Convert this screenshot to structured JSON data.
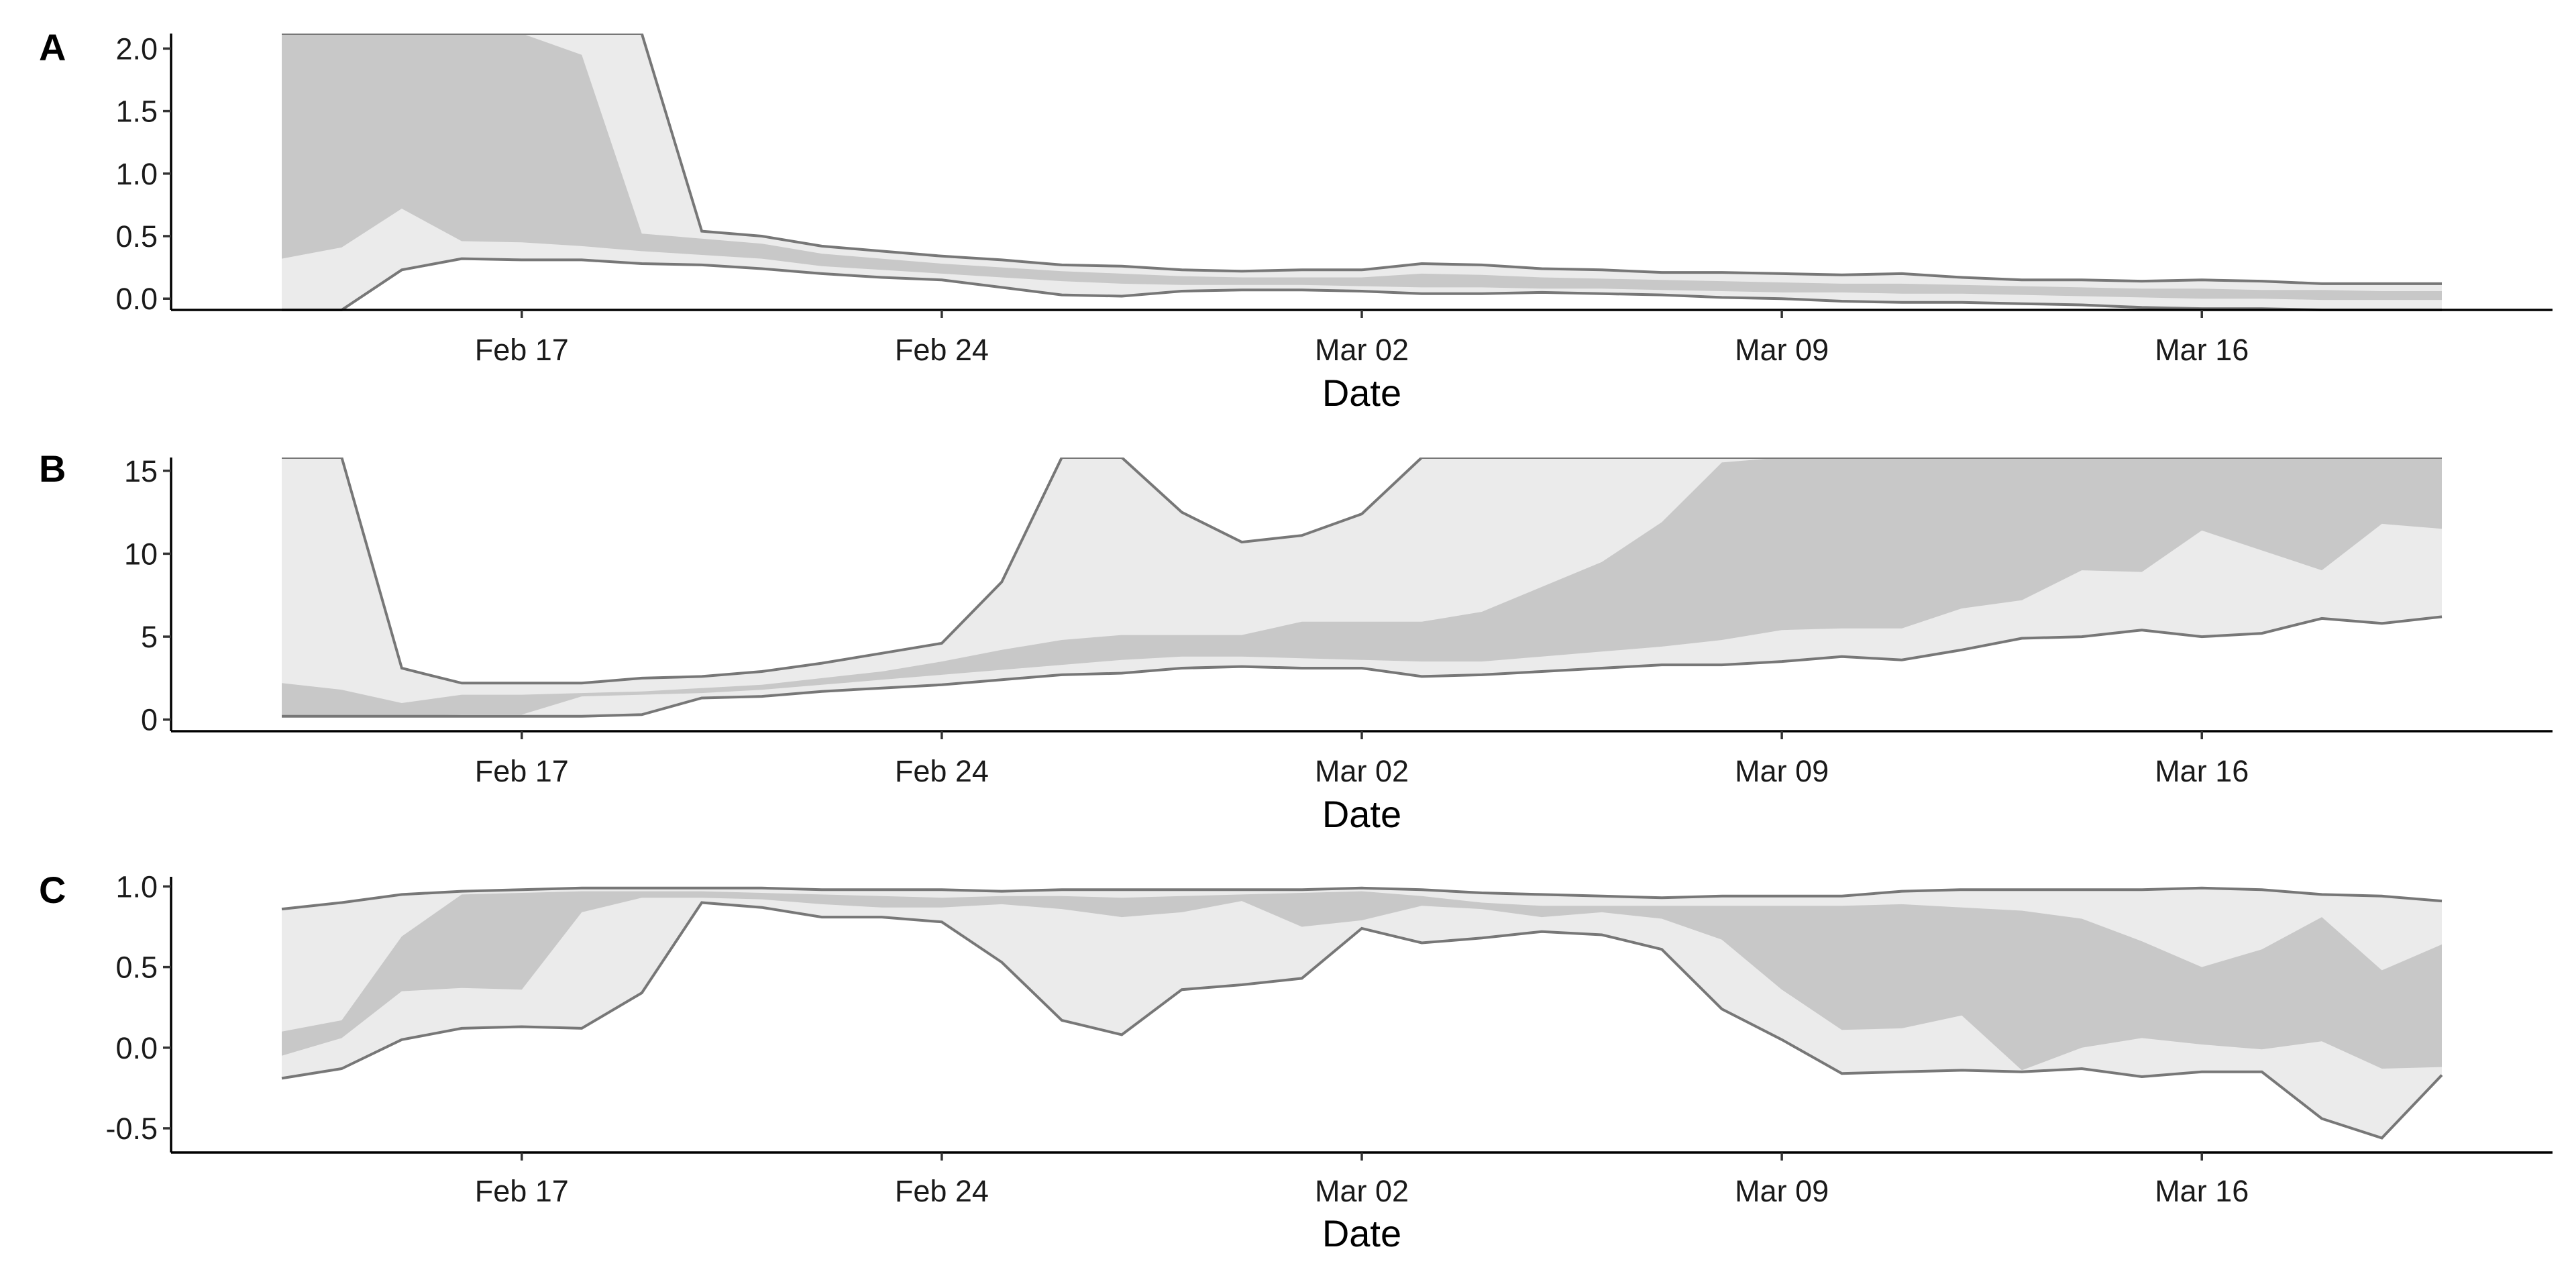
{
  "chart_data": [
    {
      "type": "area",
      "panel_label": "A",
      "xlabel": "Date",
      "ylabel": "",
      "x_tick_labels": [
        "Feb 17",
        "Feb 24",
        "Mar 02",
        "Mar 09",
        "Mar 16"
      ],
      "y_tick_labels": [
        "0.0",
        "0.5",
        "1.0",
        "1.5",
        "2.0"
      ],
      "y_ticks": [
        0,
        0.5,
        1.0,
        1.5,
        2.0
      ],
      "ylim": [
        -0.09,
        2.12
      ],
      "x_start": "2020-02-13",
      "x_end": "2020-03-20",
      "colors": {
        "outer_band": "#ebebeb",
        "inner_band": "#c8c8c8",
        "bound_line": "#777777"
      },
      "x": [
        "2020-02-13",
        "2020-02-14",
        "2020-02-15",
        "2020-02-16",
        "2020-02-17",
        "2020-02-18",
        "2020-02-19",
        "2020-02-20",
        "2020-02-21",
        "2020-02-22",
        "2020-02-23",
        "2020-02-24",
        "2020-02-25",
        "2020-02-26",
        "2020-02-27",
        "2020-02-28",
        "2020-02-29",
        "2020-03-01",
        "2020-03-02",
        "2020-03-03",
        "2020-03-04",
        "2020-03-05",
        "2020-03-06",
        "2020-03-07",
        "2020-03-08",
        "2020-03-09",
        "2020-03-10",
        "2020-03-11",
        "2020-03-12",
        "2020-03-13",
        "2020-03-14",
        "2020-03-15",
        "2020-03-16",
        "2020-03-17",
        "2020-03-18",
        "2020-03-19",
        "2020-03-20"
      ],
      "series": [
        {
          "role": "outer_upper",
          "values": [
            2.12,
            2.12,
            2.12,
            2.12,
            2.12,
            2.12,
            2.12,
            0.54,
            0.5,
            0.42,
            0.38,
            0.34,
            0.31,
            0.27,
            0.26,
            0.23,
            0.22,
            0.23,
            0.23,
            0.28,
            0.27,
            0.24,
            0.23,
            0.21,
            0.21,
            0.2,
            0.19,
            0.2,
            0.17,
            0.15,
            0.15,
            0.14,
            0.15,
            0.14,
            0.12,
            0.12,
            0.12
          ]
        },
        {
          "role": "inner_upper",
          "values": [
            2.12,
            2.12,
            2.12,
            2.12,
            2.12,
            1.95,
            0.52,
            0.48,
            0.44,
            0.36,
            0.32,
            0.28,
            0.25,
            0.22,
            0.2,
            0.18,
            0.17,
            0.17,
            0.17,
            0.2,
            0.19,
            0.17,
            0.16,
            0.15,
            0.14,
            0.13,
            0.12,
            0.12,
            0.11,
            0.1,
            0.09,
            0.08,
            0.08,
            0.07,
            0.07,
            0.06,
            0.06
          ]
        },
        {
          "role": "inner_lower",
          "values": [
            0.32,
            0.41,
            0.72,
            0.46,
            0.45,
            0.42,
            0.38,
            0.35,
            0.32,
            0.26,
            0.23,
            0.2,
            0.17,
            0.14,
            0.12,
            0.11,
            0.11,
            0.11,
            0.1,
            0.09,
            0.09,
            0.08,
            0.08,
            0.07,
            0.06,
            0.05,
            0.05,
            0.04,
            0.04,
            0.03,
            0.02,
            0.01,
            0.0,
            0.0,
            -0.01,
            -0.01,
            -0.01
          ]
        },
        {
          "role": "outer_lower",
          "values": [
            -0.09,
            -0.09,
            0.23,
            0.32,
            0.31,
            0.31,
            0.28,
            0.27,
            0.24,
            0.2,
            0.17,
            0.15,
            0.09,
            0.03,
            0.02,
            0.06,
            0.07,
            0.07,
            0.06,
            0.04,
            0.04,
            0.05,
            0.04,
            0.03,
            0.01,
            0.0,
            -0.02,
            -0.03,
            -0.03,
            -0.04,
            -0.05,
            -0.07,
            -0.08,
            -0.08,
            -0.09,
            -0.09,
            -0.09
          ]
        }
      ]
    },
    {
      "type": "area",
      "panel_label": "B",
      "xlabel": "Date",
      "ylabel": "",
      "x_tick_labels": [
        "Feb 17",
        "Feb 24",
        "Mar 02",
        "Mar 09",
        "Mar 16"
      ],
      "y_tick_labels": [
        "0",
        "5",
        "10",
        "15"
      ],
      "y_ticks": [
        0,
        5,
        10,
        15
      ],
      "ylim": [
        -0.7,
        15.8
      ],
      "x_start": "2020-02-13",
      "x_end": "2020-03-20",
      "colors": {
        "outer_band": "#ebebeb",
        "inner_band": "#c8c8c8",
        "bound_line": "#777777"
      },
      "x": [
        "2020-02-13",
        "2020-02-14",
        "2020-02-15",
        "2020-02-16",
        "2020-02-17",
        "2020-02-18",
        "2020-02-19",
        "2020-02-20",
        "2020-02-21",
        "2020-02-22",
        "2020-02-23",
        "2020-02-24",
        "2020-02-25",
        "2020-02-26",
        "2020-02-27",
        "2020-02-28",
        "2020-02-29",
        "2020-03-01",
        "2020-03-02",
        "2020-03-03",
        "2020-03-04",
        "2020-03-05",
        "2020-03-06",
        "2020-03-07",
        "2020-03-08",
        "2020-03-09",
        "2020-03-10",
        "2020-03-11",
        "2020-03-12",
        "2020-03-13",
        "2020-03-14",
        "2020-03-15",
        "2020-03-16",
        "2020-03-17",
        "2020-03-18",
        "2020-03-19",
        "2020-03-20"
      ],
      "series": [
        {
          "role": "outer_upper",
          "values": [
            15.8,
            15.8,
            3.1,
            2.2,
            2.2,
            2.2,
            2.5,
            2.6,
            2.9,
            3.4,
            4.0,
            4.6,
            8.3,
            15.8,
            15.8,
            12.5,
            10.7,
            11.1,
            12.4,
            15.8,
            15.8,
            15.8,
            15.8,
            15.8,
            15.8,
            15.8,
            15.8,
            15.8,
            15.8,
            15.8,
            15.8,
            15.8,
            15.8,
            15.8,
            15.8,
            15.8,
            15.8
          ]
        },
        {
          "role": "inner_upper",
          "values": [
            2.2,
            1.8,
            1.0,
            1.5,
            1.5,
            1.6,
            1.7,
            1.9,
            2.1,
            2.5,
            2.9,
            3.5,
            4.2,
            4.8,
            5.1,
            5.1,
            5.1,
            5.9,
            5.9,
            5.9,
            6.5,
            8.0,
            9.5,
            11.9,
            15.5,
            15.8,
            15.8,
            15.8,
            15.8,
            15.8,
            15.8,
            15.8,
            15.8,
            15.8,
            15.8,
            15.8,
            15.8
          ]
        },
        {
          "role": "inner_lower",
          "values": [
            0.2,
            0.2,
            0.2,
            0.3,
            0.3,
            1.4,
            1.5,
            1.6,
            1.8,
            2.1,
            2.4,
            2.7,
            3.0,
            3.3,
            3.6,
            3.8,
            3.8,
            3.7,
            3.6,
            3.5,
            3.5,
            3.8,
            4.1,
            4.4,
            4.8,
            5.4,
            5.5,
            5.5,
            6.7,
            7.2,
            9.0,
            8.9,
            11.4,
            10.2,
            9.0,
            11.8,
            11.5
          ]
        },
        {
          "role": "outer_lower",
          "values": [
            0.2,
            0.2,
            0.2,
            0.2,
            0.2,
            0.2,
            0.3,
            1.3,
            1.4,
            1.7,
            1.9,
            2.1,
            2.4,
            2.7,
            2.8,
            3.1,
            3.2,
            3.1,
            3.1,
            2.6,
            2.7,
            2.9,
            3.1,
            3.3,
            3.3,
            3.5,
            3.8,
            3.6,
            4.2,
            4.9,
            5.0,
            5.4,
            5.0,
            5.2,
            6.1,
            5.8,
            6.2
          ]
        }
      ]
    },
    {
      "type": "area",
      "panel_label": "C",
      "xlabel": "Date",
      "ylabel": "",
      "x_tick_labels": [
        "Feb 17",
        "Feb 24",
        "Mar 02",
        "Mar 09",
        "Mar 16"
      ],
      "y_tick_labels": [
        "-0.5",
        "0.0",
        "0.5",
        "1.0"
      ],
      "y_ticks": [
        -0.5,
        0,
        0.5,
        1.0
      ],
      "ylim": [
        -0.65,
        1.06
      ],
      "x_start": "2020-02-13",
      "x_end": "2020-03-20",
      "colors": {
        "outer_band": "#ebebeb",
        "inner_band": "#c8c8c8",
        "bound_line": "#777777"
      },
      "x": [
        "2020-02-13",
        "2020-02-14",
        "2020-02-15",
        "2020-02-16",
        "2020-02-17",
        "2020-02-18",
        "2020-02-19",
        "2020-02-20",
        "2020-02-21",
        "2020-02-22",
        "2020-02-23",
        "2020-02-24",
        "2020-02-25",
        "2020-02-26",
        "2020-02-27",
        "2020-02-28",
        "2020-02-29",
        "2020-03-01",
        "2020-03-02",
        "2020-03-03",
        "2020-03-04",
        "2020-03-05",
        "2020-03-06",
        "2020-03-07",
        "2020-03-08",
        "2020-03-09",
        "2020-03-10",
        "2020-03-11",
        "2020-03-12",
        "2020-03-13",
        "2020-03-14",
        "2020-03-15",
        "2020-03-16",
        "2020-03-17",
        "2020-03-18",
        "2020-03-19",
        "2020-03-20"
      ],
      "series": [
        {
          "role": "outer_upper",
          "values": [
            0.86,
            0.9,
            0.95,
            0.97,
            0.98,
            0.99,
            0.99,
            0.99,
            0.99,
            0.98,
            0.98,
            0.98,
            0.97,
            0.98,
            0.98,
            0.98,
            0.98,
            0.98,
            0.99,
            0.98,
            0.96,
            0.95,
            0.94,
            0.93,
            0.94,
            0.94,
            0.94,
            0.97,
            0.98,
            0.98,
            0.98,
            0.98,
            0.99,
            0.98,
            0.95,
            0.94,
            0.91
          ]
        },
        {
          "role": "inner_upper",
          "values": [
            0.1,
            0.17,
            0.69,
            0.95,
            0.96,
            0.97,
            0.97,
            0.97,
            0.96,
            0.95,
            0.94,
            0.93,
            0.94,
            0.94,
            0.93,
            0.94,
            0.95,
            0.96,
            0.97,
            0.94,
            0.9,
            0.88,
            0.88,
            0.88,
            0.88,
            0.88,
            0.88,
            0.89,
            0.87,
            0.85,
            0.8,
            0.66,
            0.5,
            0.61,
            0.81,
            0.48,
            0.64
          ]
        },
        {
          "role": "inner_lower",
          "values": [
            -0.05,
            0.06,
            0.35,
            0.37,
            0.36,
            0.84,
            0.93,
            0.93,
            0.92,
            0.89,
            0.87,
            0.87,
            0.89,
            0.86,
            0.81,
            0.84,
            0.91,
            0.75,
            0.79,
            0.88,
            0.86,
            0.81,
            0.84,
            0.8,
            0.67,
            0.36,
            0.11,
            0.12,
            0.2,
            -0.14,
            0.0,
            0.06,
            0.02,
            -0.01,
            0.04,
            -0.13,
            -0.12
          ]
        },
        {
          "role": "outer_lower",
          "values": [
            -0.19,
            -0.13,
            0.05,
            0.12,
            0.13,
            0.12,
            0.34,
            0.9,
            0.87,
            0.81,
            0.81,
            0.78,
            0.53,
            0.17,
            0.08,
            0.36,
            0.39,
            0.43,
            0.74,
            0.65,
            0.68,
            0.72,
            0.7,
            0.61,
            0.24,
            0.05,
            -0.16,
            -0.15,
            -0.14,
            -0.15,
            -0.13,
            -0.18,
            -0.15,
            -0.15,
            -0.44,
            -0.56,
            -0.17
          ]
        }
      ]
    }
  ]
}
